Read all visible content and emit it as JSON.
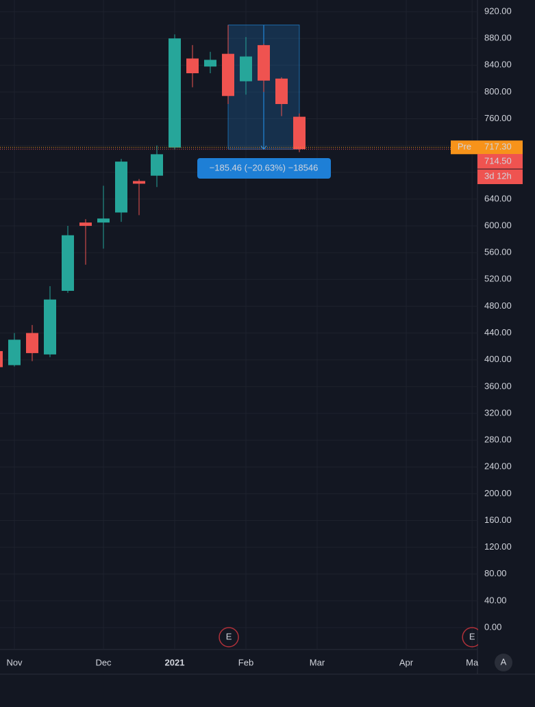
{
  "chart_data": {
    "type": "candlestick",
    "x": [
      0,
      1,
      2,
      3,
      4,
      5,
      6,
      7,
      8,
      9,
      10,
      11,
      12,
      13,
      14,
      15,
      16,
      17
    ],
    "series": [
      {
        "up_color": "#26a69a",
        "down_color": "#ef5350",
        "open": [
          413,
          392,
          440,
          408,
          503,
          605,
          605,
          620,
          667,
          675,
          717,
          850,
          838,
          857,
          816,
          870,
          820,
          763
        ],
        "high": [
          415,
          440,
          452,
          510,
          600,
          610,
          660,
          700,
          670,
          720,
          886,
          870,
          860,
          900,
          882,
          872,
          822,
          768
        ],
        "low": [
          385,
          390,
          398,
          404,
          500,
          542,
          566,
          606,
          616,
          658,
          714,
          807,
          828,
          782,
          796,
          800,
          764,
          710
        ],
        "close": [
          389,
          430,
          410,
          490,
          586,
          600,
          611,
          696,
          663,
          707,
          880,
          828,
          848,
          794,
          853,
          817,
          782,
          714.5
        ]
      }
    ],
    "xlim": [
      0.19,
      27
    ],
    "xticks": [
      {
        "value": 1.0,
        "label": "Nov"
      },
      {
        "value": 6.0,
        "label": "Dec"
      },
      {
        "value": 10.0,
        "label": "2021"
      },
      {
        "value": 14.0,
        "label": "Feb"
      },
      {
        "value": 18.0,
        "label": "Mar"
      },
      {
        "value": 23.0,
        "label": "Apr"
      },
      {
        "value": 26.7,
        "label": "Ma"
      }
    ],
    "ylim": [
      0,
      920
    ],
    "yticks": [
      {
        "value": 0,
        "label": "0.00"
      },
      {
        "value": 40,
        "label": "40.00"
      },
      {
        "value": 80,
        "label": "80.00"
      },
      {
        "value": 120,
        "label": "120.00"
      },
      {
        "value": 160,
        "label": "160.00"
      },
      {
        "value": 200,
        "label": "200.00"
      },
      {
        "value": 240,
        "label": "240.00"
      },
      {
        "value": 280,
        "label": "280.00"
      },
      {
        "value": 320,
        "label": "320.00"
      },
      {
        "value": 360,
        "label": "360.00"
      },
      {
        "value": 400,
        "label": "400.00"
      },
      {
        "value": 440,
        "label": "440.00"
      },
      {
        "value": 480,
        "label": "480.00"
      },
      {
        "value": 520,
        "label": "520.00"
      },
      {
        "value": 560,
        "label": "560.00"
      },
      {
        "value": 600,
        "label": "600.00"
      },
      {
        "value": 640,
        "label": "640.00"
      },
      {
        "value": 680,
        "label": "680.00"
      },
      {
        "value": 720,
        "label": "720.00"
      },
      {
        "value": 760,
        "label": "760.00"
      },
      {
        "value": 800,
        "label": "800.00"
      },
      {
        "value": 840,
        "label": "840.00"
      },
      {
        "value": 880,
        "label": "880.00"
      },
      {
        "value": 920,
        "label": "920.00"
      }
    ],
    "grid": true,
    "pre_market": {
      "label": "Pre",
      "value": 717.3,
      "value_label": "717.30",
      "color": "#f7931a"
    },
    "last_price": {
      "value": 714.5,
      "value_label": "714.50",
      "countdown": "3d 12h",
      "color": "#ef5350"
    },
    "measure": {
      "label": "−185.46 (−20.63%) −18546",
      "x_start": 13,
      "x_end": 17,
      "top": 900,
      "bottom": 714.5
    },
    "earnings": [
      {
        "x": 13.04,
        "label": "E"
      },
      {
        "x": 26.7,
        "label": "E"
      }
    ],
    "scale_button": "A"
  }
}
